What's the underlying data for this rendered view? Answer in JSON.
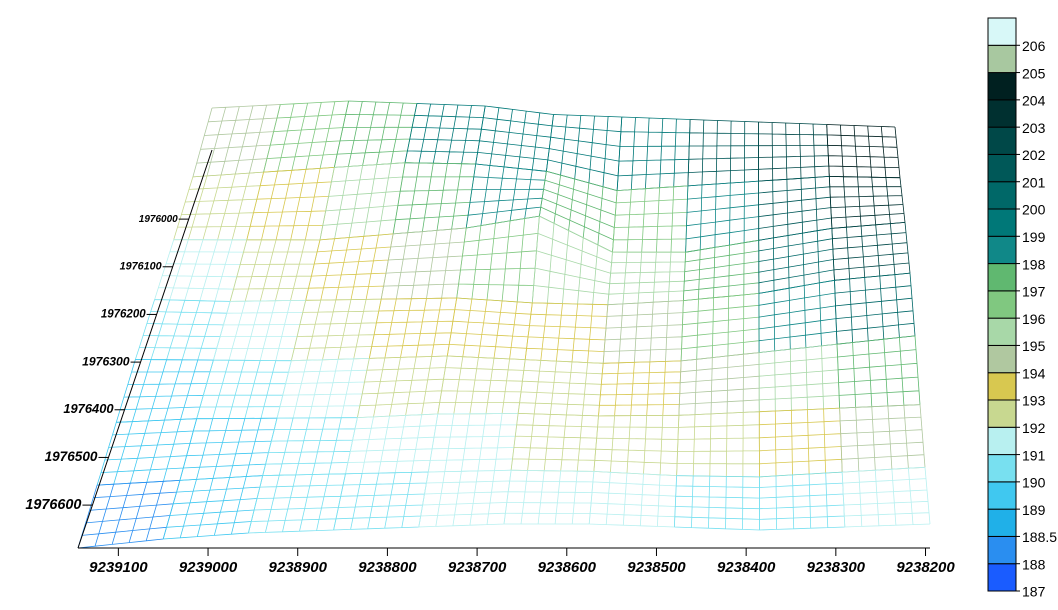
{
  "chart_data": {
    "type": "surface",
    "xlim": [
      9239145,
      9238195
    ],
    "xticks": [
      9239100,
      9239000,
      9238900,
      9238800,
      9238700,
      9238600,
      9238500,
      9238400,
      9238300,
      9238200
    ],
    "ylim": [
      1976690,
      1975855
    ],
    "yticks": [
      1976000,
      1976100,
      1976200,
      1976300,
      1976400,
      1976500,
      1976600
    ],
    "z": [
      [
        187,
        188.5,
        189.5,
        190,
        190.5,
        191,
        191,
        190.5,
        190,
        190.5,
        191
      ],
      [
        188,
        189,
        190,
        190.5,
        191,
        191.5,
        191.5,
        191,
        191,
        192,
        193
      ],
      [
        189,
        190,
        190.5,
        191,
        192,
        192.5,
        192.5,
        193,
        194,
        195,
        196
      ],
      [
        190,
        190.5,
        191,
        192,
        193,
        193,
        193,
        194,
        196,
        198,
        200
      ],
      [
        190.5,
        191,
        192,
        193,
        194,
        194,
        194.5,
        196,
        198,
        201,
        203
      ],
      [
        191,
        192,
        193,
        195,
        197,
        200,
        195,
        196,
        199,
        202,
        204
      ],
      [
        192,
        194,
        196,
        198,
        199,
        199,
        197,
        199,
        201,
        203,
        204
      ],
      [
        194,
        196,
        198,
        199,
        200,
        200,
        201,
        202,
        203,
        204,
        205
      ]
    ],
    "levels": [
      187,
      188,
      188.5,
      189,
      190,
      191,
      192,
      193,
      194,
      195,
      196,
      197,
      198,
      199,
      200,
      201,
      202,
      203,
      204,
      205,
      206
    ],
    "colors": [
      "#1a5cff",
      "#2a8ef0",
      "#20b0e8",
      "#40c8f0",
      "#78e0f0",
      "#b8f0f0",
      "#c8d890",
      "#d8c850",
      "#b0c8a0",
      "#a8d8a8",
      "#80c880",
      "#60b870",
      "#108888",
      "#007878",
      "#006868",
      "#005858",
      "#004848",
      "#003030",
      "#002020",
      "#a8c8a0",
      "#d8f8f8"
    ]
  }
}
